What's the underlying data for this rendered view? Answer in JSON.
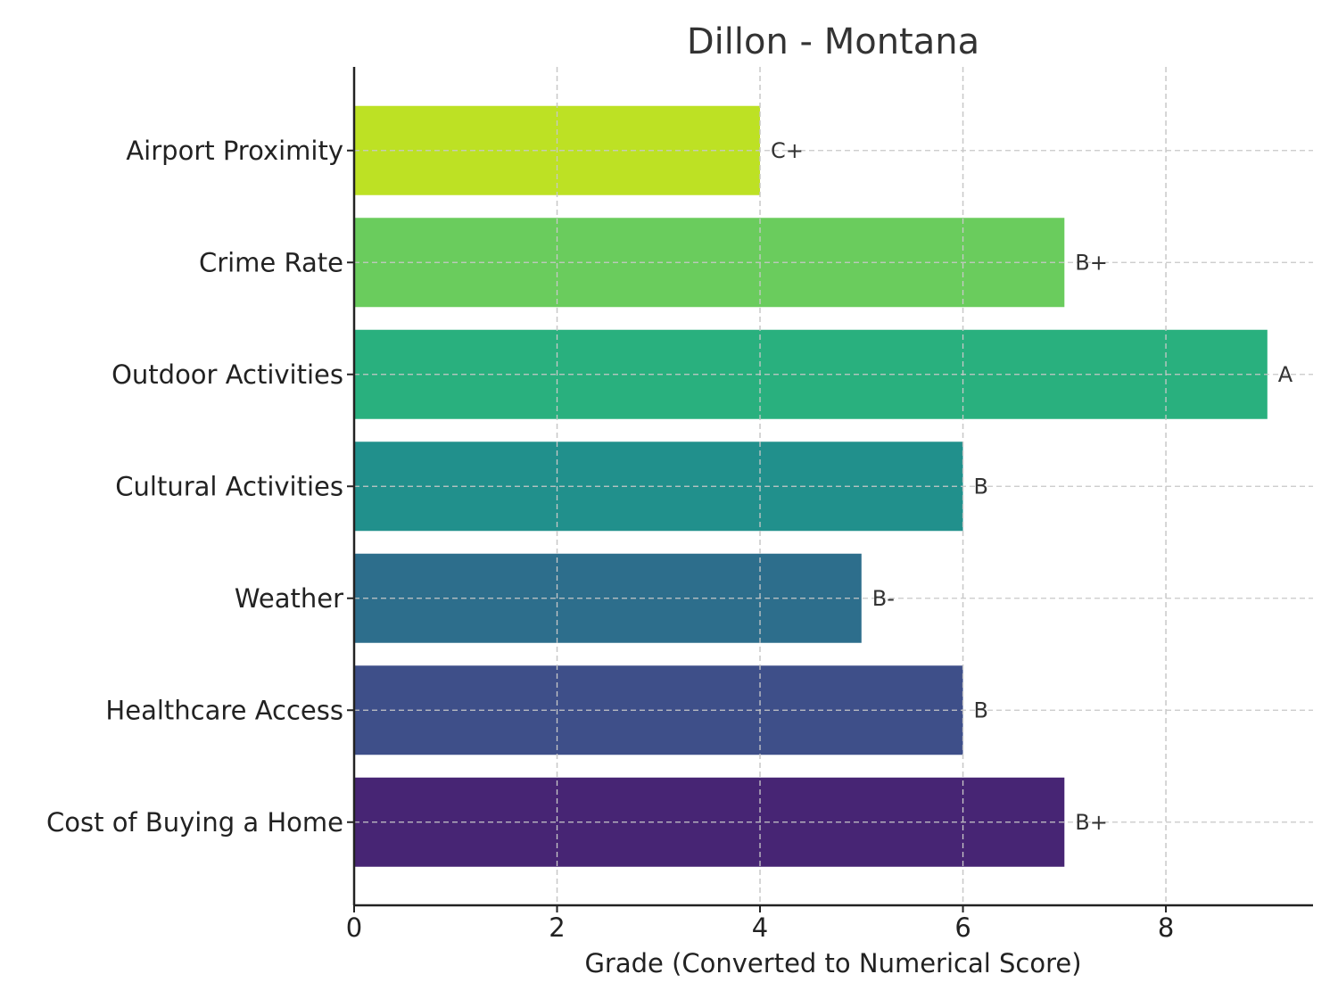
{
  "chart_data": {
    "type": "bar",
    "orientation": "horizontal",
    "title": "Dillon - Montana",
    "xlabel": "Grade (Converted to Numerical Score)",
    "ylabel": "",
    "xlim": [
      0,
      9.45
    ],
    "xticks": [
      0,
      2,
      4,
      6,
      8
    ],
    "grid": true,
    "categories": [
      "Cost of Buying a Home",
      "Healthcare Access",
      "Weather",
      "Cultural Activities",
      "Outdoor Activities",
      "Crime Rate",
      "Airport Proximity"
    ],
    "values": [
      7,
      6,
      5,
      6,
      9,
      7,
      4
    ],
    "grades": [
      "B+",
      "B",
      "B-",
      "B",
      "A",
      "B+",
      "C+"
    ],
    "colors": [
      "#472574",
      "#3e4f89",
      "#2d6e8c",
      "#21908c",
      "#29b07e",
      "#6acc5d",
      "#bde124"
    ]
  }
}
